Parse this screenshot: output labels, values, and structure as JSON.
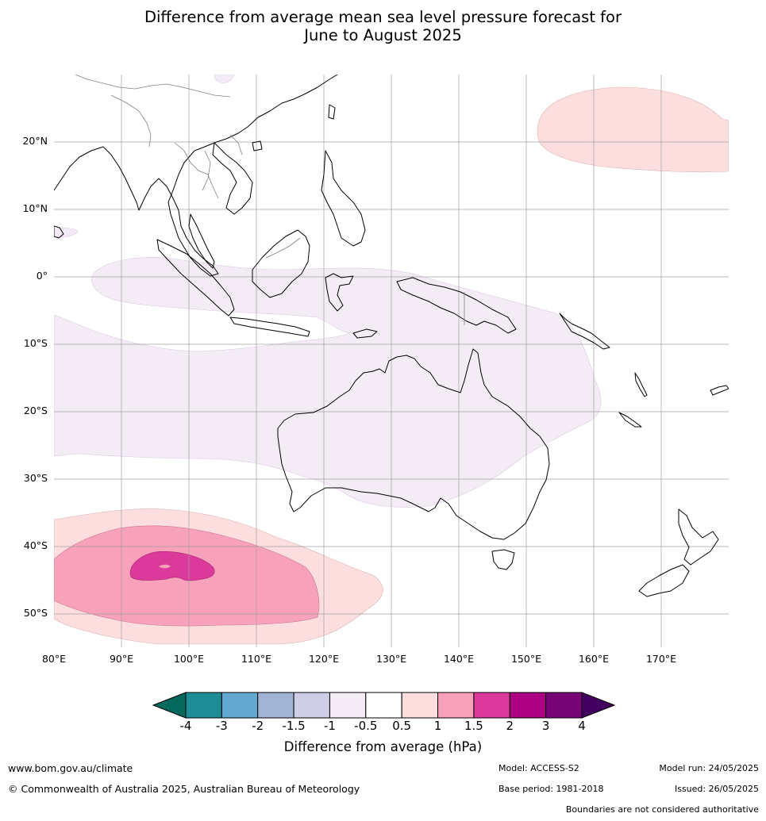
{
  "title": {
    "line1": "Difference from average mean sea level pressure forecast for",
    "line2": "June to August 2025"
  },
  "map": {
    "lat_labels": [
      "20°N",
      "10°N",
      "0°",
      "10°S",
      "20°S",
      "30°S",
      "40°S",
      "50°S"
    ],
    "lon_labels": [
      "80°E",
      "90°E",
      "100°E",
      "110°E",
      "120°E",
      "130°E",
      "140°E",
      "150°E",
      "160°E",
      "170°E"
    ],
    "colors": {
      "land_outline": "#000000",
      "border": "#808080",
      "grid": "#a0a0a0",
      "anom_-0.5_-1": "#f3ecf5",
      "anom_0.5_1": "#fddede",
      "anom_1_1.5": "#f7a1bb",
      "anom_1.5_2": "#dc3a9b"
    }
  },
  "colorbar": {
    "title": "Difference from average (hPa)",
    "ticks": [
      "-4",
      "-3",
      "-2",
      "-1.5",
      "-1",
      "-0.5",
      "0.5",
      "1",
      "1.5",
      "2",
      "3",
      "4"
    ],
    "colors": [
      "#1e8d96",
      "#63a8cf",
      "#a1b4d6",
      "#cdcde3",
      "#f3ecf5",
      "#ffffff",
      "#fddede",
      "#f7a1bb",
      "#dc3a9b",
      "#ab0081",
      "#770578"
    ],
    "low_extend_color": "#02695c",
    "high_extend_color": "#440060"
  },
  "footer": {
    "website": "www.bom.gov.au/climate",
    "copyright": "© Commonwealth of Australia 2025, Australian Bureau of Meteorology",
    "model": "Model: ACCESS-S2",
    "base_period": "Base period: 1981-2018",
    "model_run": "Model run: 24/05/2025",
    "issued": "Issued: 26/05/2025",
    "disclaimer": "Boundaries are not considered authoritative"
  }
}
